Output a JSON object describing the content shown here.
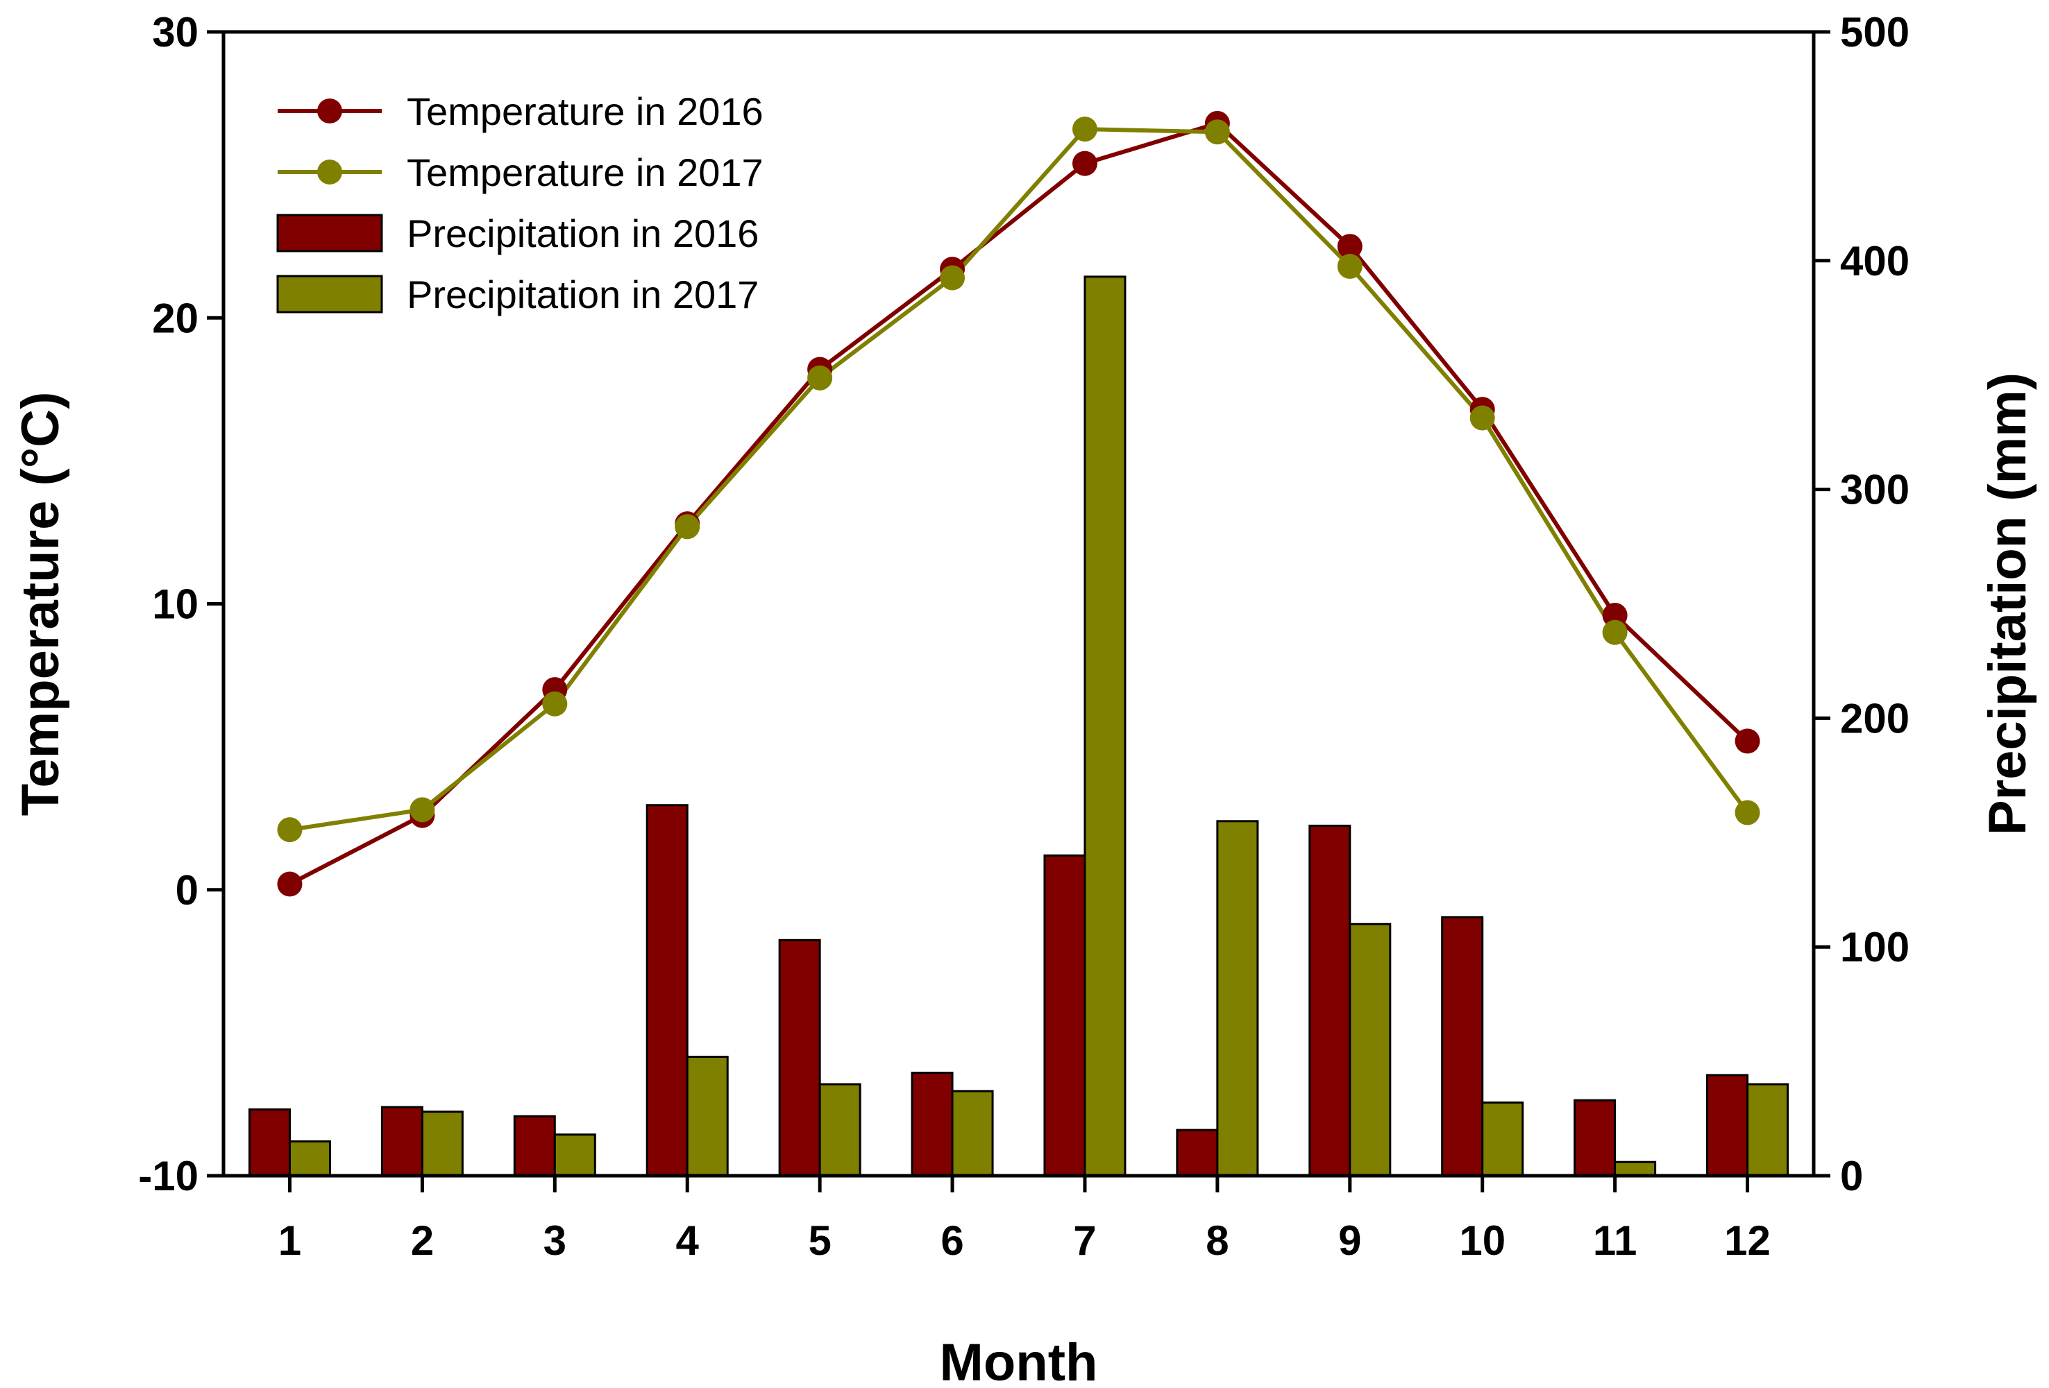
{
  "chart_data": {
    "type": "bar+line",
    "categories": [
      "1",
      "2",
      "3",
      "4",
      "5",
      "6",
      "7",
      "8",
      "9",
      "10",
      "11",
      "12"
    ],
    "xlabel": "Month",
    "ylabel_left": "Temperature (°C)",
    "ylabel_right": "Precipitation (mm)",
    "ylim_left": [
      -10,
      30
    ],
    "ylim_right": [
      0,
      500
    ],
    "yticks_left": [
      "-10",
      "0",
      "10",
      "20",
      "30"
    ],
    "yticks_right": [
      "0",
      "100",
      "200",
      "300",
      "400",
      "500"
    ],
    "legend_position": "top-left",
    "series": [
      {
        "name": "Temperature in 2016",
        "kind": "line",
        "axis": "left",
        "color": "#800000",
        "values": [
          0.2,
          2.6,
          7.0,
          12.8,
          18.2,
          21.7,
          25.4,
          26.8,
          22.5,
          16.8,
          9.6,
          5.2
        ]
      },
      {
        "name": "Temperature in 2017",
        "kind": "line",
        "axis": "left",
        "color": "#808000",
        "values": [
          2.1,
          2.8,
          6.5,
          12.7,
          17.9,
          21.4,
          26.6,
          26.5,
          21.8,
          16.5,
          9.0,
          2.7
        ]
      },
      {
        "name": "Precipitation in 2016",
        "kind": "bar",
        "axis": "right",
        "color": "#800000",
        "values": [
          29,
          30,
          26,
          162,
          103,
          45,
          140,
          20,
          153,
          113,
          33,
          44
        ]
      },
      {
        "name": "Precipitation in 2017",
        "kind": "bar",
        "axis": "right",
        "color": "#808000",
        "values": [
          15,
          28,
          18,
          52,
          40,
          37,
          393,
          155,
          110,
          32,
          6,
          40
        ]
      }
    ]
  }
}
